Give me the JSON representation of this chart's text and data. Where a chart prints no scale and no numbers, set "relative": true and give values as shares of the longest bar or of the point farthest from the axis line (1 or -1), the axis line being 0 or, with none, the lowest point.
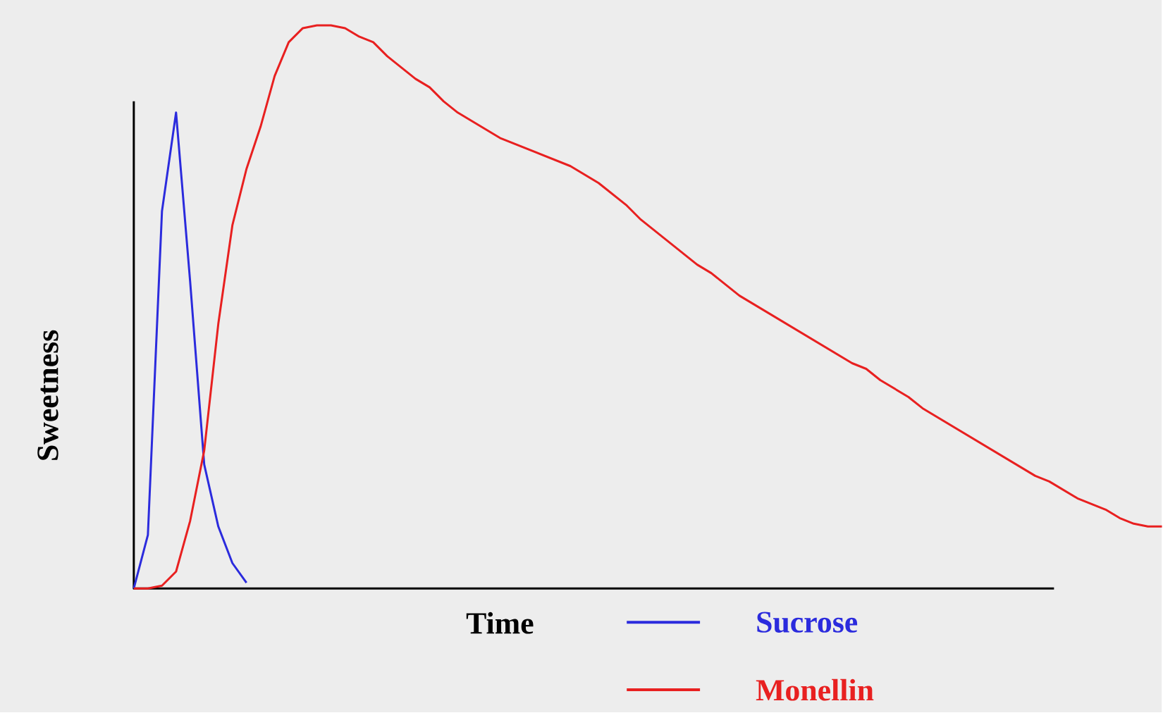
{
  "chart_data": {
    "type": "line",
    "relative": true,
    "xlabel": "Time",
    "ylabel": "Sweetness",
    "legend": "bottom",
    "marker": "none",
    "line_style": "solid",
    "categories": [
      null,
      null,
      null,
      null,
      null,
      null,
      null,
      null,
      null,
      null,
      null,
      null,
      null,
      null,
      null,
      null,
      null,
      null,
      null,
      null,
      null,
      null,
      null,
      null,
      null,
      null,
      null,
      null,
      null,
      null,
      null,
      null,
      null,
      null,
      null,
      null,
      null,
      null,
      null,
      null,
      null,
      null,
      null,
      null,
      null,
      null,
      null,
      null,
      null,
      null,
      null,
      null,
      null,
      null,
      null,
      null,
      null,
      null,
      null,
      null,
      null,
      null,
      null,
      null,
      null,
      null,
      null,
      null,
      null,
      null,
      null,
      null,
      null,
      null
    ],
    "series": [
      {
        "name": "Sucrose",
        "color": "#2b2bdd",
        "values": [
          0,
          0.095,
          0.67,
          0.845,
          0.545,
          0.22,
          0.11,
          0.045,
          0.01,
          null,
          null,
          null,
          null,
          null,
          null,
          null,
          null,
          null,
          null,
          null,
          null,
          null,
          null,
          null,
          null,
          null,
          null,
          null,
          null,
          null,
          null,
          null,
          null,
          null,
          null,
          null,
          null,
          null,
          null,
          null,
          null,
          null,
          null,
          null,
          null,
          null,
          null,
          null,
          null,
          null,
          null,
          null,
          null,
          null,
          null,
          null,
          null,
          null,
          null,
          null,
          null,
          null,
          null,
          null,
          null,
          null,
          null,
          null,
          null,
          null,
          null,
          null,
          null,
          null
        ]
      },
      {
        "name": "Monellin",
        "color": "#e82020",
        "values": [
          0,
          0,
          0.005,
          0.03,
          0.12,
          0.245,
          0.47,
          0.645,
          0.745,
          0.82,
          0.91,
          0.97,
          0.995,
          1.0,
          1.0,
          0.995,
          0.98,
          0.97,
          0.945,
          0.925,
          0.905,
          0.89,
          0.865,
          0.845,
          0.83,
          0.815,
          0.8,
          0.79,
          0.78,
          0.77,
          0.76,
          0.75,
          0.735,
          0.72,
          0.7,
          0.68,
          0.655,
          0.635,
          0.615,
          0.595,
          0.575,
          0.56,
          0.54,
          0.52,
          0.505,
          0.49,
          0.475,
          0.46,
          0.445,
          0.43,
          0.415,
          0.4,
          0.39,
          0.37,
          0.355,
          0.34,
          0.32,
          0.305,
          0.29,
          0.275,
          0.26,
          0.245,
          0.23,
          0.215,
          0.2,
          0.19,
          0.175,
          0.16,
          0.15,
          0.14,
          0.125,
          0.115,
          0.11,
          0.11
        ]
      }
    ]
  }
}
